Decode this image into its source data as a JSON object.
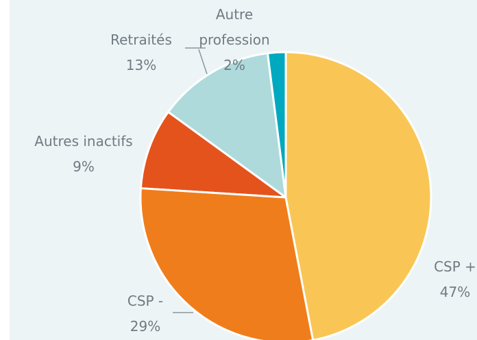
{
  "chart_data": {
    "type": "pie",
    "categories": [
      "CSP +",
      "CSP -",
      "Autres inactifs",
      "Retraités",
      "Autre profession"
    ],
    "values": [
      47,
      29,
      9,
      13,
      2
    ],
    "value_labels": [
      "47%",
      "29%",
      "9%",
      "13%",
      "2%"
    ],
    "colors": [
      "#f9c656",
      "#f07d1b",
      "#e5531d",
      "#afdadc",
      "#00a8c0"
    ]
  }
}
